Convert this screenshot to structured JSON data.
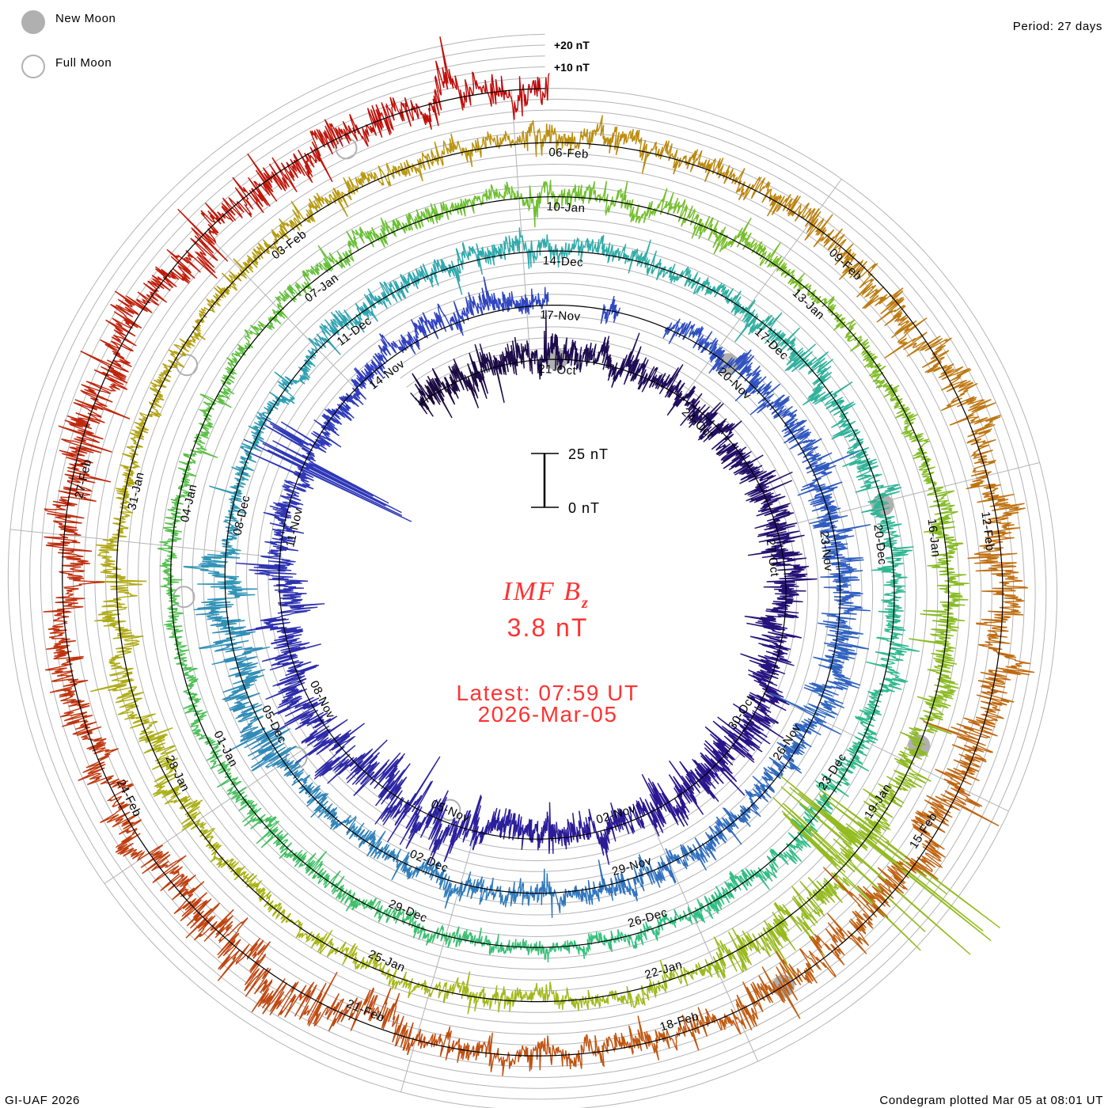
{
  "legend": {
    "new_moon": "New Moon",
    "full_moon": "Full Moon"
  },
  "period": "Period: 27 days",
  "footer_left": "GI-UAF 2026",
  "footer_right": "Condegram plotted Mar 05 at 08:01 UT",
  "center": {
    "title": "IMF B",
    "subscript": "z",
    "value": "3.8 nT",
    "latest": "Latest: 07:59 UT",
    "date": "2026-Mar-05"
  },
  "scale": {
    "top": "25 nT",
    "bottom": "0 nT"
  },
  "grid_labels": {
    "plus20": "+20 nT",
    "plus10": "+10 nT"
  },
  "chart_data": {
    "type": "line",
    "layout": "spiral-condegram",
    "title": "IMF Bz",
    "units": "nT",
    "period_days": 27,
    "reference_time": "2025-10-21T00:00",
    "start_time": "2025-10-18T16:00",
    "end_time": "2026-03-05T07:59",
    "scale_bar_nT": [
      0,
      25
    ],
    "grid_step_nT": 5,
    "date_labels": [
      "21-Oct",
      "24-Oct",
      "27-Oct",
      "30-Oct",
      "02-Nov",
      "05-Nov",
      "08-Nov",
      "11-Nov",
      "14-Nov",
      "17-Nov",
      "20-Nov",
      "23-Nov",
      "26-Nov",
      "29-Nov",
      "02-Dec",
      "05-Dec",
      "08-Dec",
      "11-Dec",
      "14-Dec",
      "17-Dec",
      "20-Dec",
      "23-Dec",
      "26-Dec",
      "29-Dec",
      "01-Jan",
      "04-Jan",
      "07-Jan",
      "10-Jan",
      "13-Jan",
      "16-Jan",
      "19-Jan",
      "22-Jan",
      "25-Jan",
      "28-Jan",
      "31-Jan",
      "03-Feb",
      "06-Feb",
      "09-Feb",
      "12-Feb",
      "15-Feb",
      "18-Feb",
      "21-Feb",
      "24-Feb",
      "27-Feb"
    ],
    "label_step_days": 3,
    "new_moons": [
      "2025-10-21T12:00",
      "2025-11-20T06:00",
      "2025-12-20T01:00",
      "2026-01-18T19:00",
      "2026-02-17T12:00"
    ],
    "full_moons": [
      "2025-11-05T13:00",
      "2025-12-04T23:00",
      "2026-01-03T10:00",
      "2026-02-01T22:00",
      "2026-03-03T11:00"
    ],
    "block_days": 3,
    "block_start": "2025-10-18T00:00",
    "blocks": [
      {
        "amp": 8,
        "mean": 2
      },
      {
        "amp": 7,
        "mean": 1
      },
      {
        "amp": 8,
        "mean": 0
      },
      {
        "amp": 9,
        "mean": -1
      },
      {
        "amp": 10,
        "mean": 0
      },
      {
        "amp": 7,
        "mean": -2
      },
      {
        "amp": 12,
        "mean": 0
      },
      {
        "amp": 9,
        "mean": 0
      },
      {
        "amp": 6,
        "mean": 0
      },
      {
        "amp": 6,
        "mean": 2
      },
      {
        "amp": 6,
        "mean": 3
      },
      {
        "amp": 7,
        "mean": 2
      },
      {
        "amp": 9,
        "mean": 0
      },
      {
        "amp": 6,
        "mean": 0
      },
      {
        "amp": 6,
        "mean": 0
      },
      {
        "amp": 5,
        "mean": 0
      },
      {
        "amp": 10,
        "mean": 2
      },
      {
        "amp": 4,
        "mean": 0
      },
      {
        "amp": 6,
        "mean": 2
      },
      {
        "amp": 5,
        "mean": 1
      },
      {
        "amp": 7,
        "mean": 0
      },
      {
        "amp": 6,
        "mean": 0
      },
      {
        "amp": 6,
        "mean": 0
      },
      {
        "amp": 4,
        "mean": 0
      },
      {
        "amp": 5,
        "mean": 0
      },
      {
        "amp": 4,
        "mean": 0
      },
      {
        "amp": 4,
        "mean": 0
      },
      {
        "amp": 5,
        "mean": 2
      },
      {
        "amp": 6,
        "mean": 1
      },
      {
        "amp": 4,
        "mean": 0
      },
      {
        "amp": 7,
        "mean": 0
      },
      {
        "amp": 10,
        "mean": 0
      },
      {
        "amp": 5,
        "mean": 0
      },
      {
        "amp": 4,
        "mean": 0
      },
      {
        "amp": 7,
        "mean": 0
      },
      {
        "amp": 4,
        "mean": 0
      },
      {
        "amp": 5,
        "mean": 1
      },
      {
        "amp": 6,
        "mean": 1
      },
      {
        "amp": 8,
        "mean": 0
      },
      {
        "amp": 9,
        "mean": 0
      },
      {
        "amp": 10,
        "mean": 0
      },
      {
        "amp": 6,
        "mean": 0
      },
      {
        "amp": 10,
        "mean": 0
      },
      {
        "amp": 8,
        "mean": 0
      },
      {
        "amp": 10,
        "mean": 0
      },
      {
        "amp": 9,
        "mean": 1
      },
      {
        "amp": 9,
        "mean": 1
      }
    ],
    "spikes": [
      {
        "time": "2025-11-12T08:00",
        "duration_days": 0.6,
        "min": -58,
        "max": 30
      },
      {
        "time": "2026-01-19T19:00",
        "duration_days": 0.6,
        "min": -52,
        "max": 75
      }
    ],
    "gaps": [
      {
        "from": "2025-11-17T08:00",
        "to": "2025-11-18T04:00"
      },
      {
        "from": "2025-11-18T10:00",
        "to": "2025-11-19T04:00"
      }
    ],
    "color_stops": [
      {
        "at": 0,
        "color": "#1a0a3c"
      },
      {
        "at": 0.1,
        "color": "#2a1590"
      },
      {
        "at": 0.2,
        "color": "#3040c0"
      },
      {
        "at": 0.3,
        "color": "#3070c0"
      },
      {
        "at": 0.4,
        "color": "#30a8b0"
      },
      {
        "at": 0.5,
        "color": "#30c080"
      },
      {
        "at": 0.6,
        "color": "#6cc030"
      },
      {
        "at": 0.72,
        "color": "#a8b818"
      },
      {
        "at": 0.79,
        "color": "#b89a10"
      },
      {
        "at": 0.85,
        "color": "#c07010"
      },
      {
        "at": 0.92,
        "color": "#c04810"
      },
      {
        "at": 1,
        "color": "#c00808"
      }
    ],
    "moon_color": "#b0b0b0",
    "grid_color": "#b4b4b4",
    "zero_line_color": "#000000"
  }
}
